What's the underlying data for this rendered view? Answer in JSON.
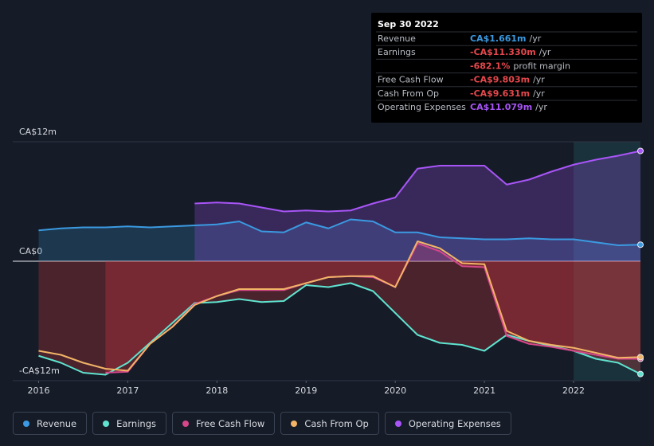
{
  "chart_data": {
    "type": "line",
    "x": [
      2016.0,
      2016.25,
      2016.5,
      2016.75,
      2017.0,
      2017.25,
      2017.5,
      2017.75,
      2018.0,
      2018.25,
      2018.5,
      2018.75,
      2019.0,
      2019.25,
      2019.5,
      2019.75,
      2020.0,
      2020.25,
      2020.5,
      2020.75,
      2021.0,
      2021.25,
      2021.5,
      2021.75,
      2022.0,
      2022.25,
      2022.5,
      2022.75
    ],
    "xlim": [
      2015.71,
      2022.75
    ],
    "xticks": [
      2016,
      2017,
      2018,
      2019,
      2020,
      2021,
      2022
    ],
    "ylim": [
      -12,
      12
    ],
    "yticks": [
      {
        "value": 12,
        "label": "CA$12m"
      },
      {
        "value": 0,
        "label": "CA$0"
      },
      {
        "value": -12,
        "label": "-CA$12m"
      }
    ],
    "series": [
      {
        "name": "Revenue",
        "color": "#3b9ae1",
        "values": [
          3.1,
          3.3,
          3.4,
          3.4,
          3.5,
          3.4,
          3.5,
          3.6,
          3.7,
          4.0,
          3.0,
          2.9,
          3.9,
          3.3,
          4.2,
          4.0,
          2.9,
          2.9,
          2.4,
          2.3,
          2.2,
          2.2,
          2.3,
          2.2,
          2.2,
          1.9,
          1.6,
          1.661
        ]
      },
      {
        "name": "Earnings",
        "color": "#5fe3cf",
        "values": [
          -9.5,
          -10.2,
          -11.2,
          -11.4,
          -10.2,
          -8.2,
          -6.2,
          -4.2,
          -4.1,
          -3.8,
          -4.1,
          -4.0,
          -2.4,
          -2.6,
          -2.2,
          -3.0,
          -5.2,
          -7.4,
          -8.2,
          -8.4,
          -9.0,
          -7.4,
          -8.0,
          -8.5,
          -9.0,
          -9.8,
          -10.2,
          -11.33
        ]
      },
      {
        "name": "Free Cash Flow",
        "color": "#d5478a",
        "values": [
          null,
          null,
          null,
          -11.2,
          -11.1,
          -8.3,
          -6.6,
          -4.3,
          -3.5,
          -2.9,
          -2.9,
          -2.9,
          -2.2,
          -1.6,
          -1.5,
          -1.6,
          -2.6,
          1.8,
          1.0,
          -0.5,
          -0.6,
          -7.5,
          -8.3,
          -8.6,
          -9.0,
          -9.4,
          -9.8,
          -9.803
        ]
      },
      {
        "name": "Cash From Op",
        "color": "#f2b467",
        "values": [
          -9.0,
          -9.4,
          -10.2,
          -10.8,
          -11.0,
          -8.3,
          -6.6,
          -4.4,
          -3.5,
          -2.8,
          -2.8,
          -2.8,
          -2.2,
          -1.6,
          -1.5,
          -1.5,
          -2.6,
          2.0,
          1.3,
          -0.2,
          -0.3,
          -7.0,
          -8.0,
          -8.4,
          -8.7,
          -9.2,
          -9.7,
          -9.631
        ]
      },
      {
        "name": "Operating Expenses",
        "color": "#a855f7",
        "values": [
          null,
          null,
          null,
          null,
          null,
          null,
          null,
          5.8,
          5.9,
          5.8,
          5.4,
          5.0,
          5.1,
          5.0,
          5.1,
          5.8,
          6.4,
          9.3,
          9.6,
          9.6,
          9.6,
          7.7,
          8.2,
          9.0,
          9.7,
          10.2,
          10.6,
          11.079
        ]
      }
    ],
    "tooltip": {
      "date": "Sep 30 2022",
      "rows": [
        {
          "label": "Revenue",
          "value": "CA$1.661m",
          "unit": "/yr",
          "color": "#3b9ae1"
        },
        {
          "label": "Earnings",
          "value": "-CA$11.330m",
          "unit": "/yr",
          "color": "#e5484d"
        },
        {
          "value": "-682.1%",
          "unit": "profit margin",
          "color": "#e5484d"
        },
        {
          "label": "Free Cash Flow",
          "value": "-CA$9.803m",
          "unit": "/yr",
          "color": "#e5484d"
        },
        {
          "label": "Cash From Op",
          "value": "-CA$9.631m",
          "unit": "/yr",
          "color": "#e5484d"
        },
        {
          "label": "Operating Expenses",
          "value": "CA$11.079m",
          "unit": "/yr",
          "color": "#a855f7"
        }
      ]
    }
  }
}
